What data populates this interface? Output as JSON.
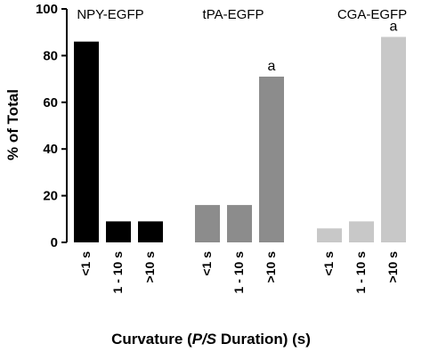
{
  "chart_data": {
    "type": "bar",
    "ylabel": "% of Total",
    "xlabel_parts": [
      "Curvature (",
      "P/S",
      " Duration) (s)"
    ],
    "ylim": [
      0,
      100
    ],
    "yticks": [
      "0",
      "20",
      "40",
      "60",
      "80",
      "100"
    ],
    "grid": false,
    "groups": [
      {
        "name": "NPY-EGFP",
        "color": "#000000",
        "categories": [
          "<1 s",
          "1 - 10 s",
          ">10 s"
        ],
        "values": [
          86,
          9,
          9
        ],
        "annotations": [
          "",
          "",
          ""
        ]
      },
      {
        "name": "tPA-EGFP",
        "color": "#8c8c8c",
        "categories": [
          "<1 s",
          "1 - 10 s",
          ">10 s"
        ],
        "values": [
          16,
          16,
          71
        ],
        "annotations": [
          "",
          "",
          "a"
        ]
      },
      {
        "name": "CGA-EGFP",
        "color": "#c8c8c8",
        "categories": [
          "<1 s",
          "1 - 10 s",
          ">10 s"
        ],
        "values": [
          6,
          9,
          88
        ],
        "annotations": [
          "",
          "",
          "a"
        ]
      }
    ]
  }
}
